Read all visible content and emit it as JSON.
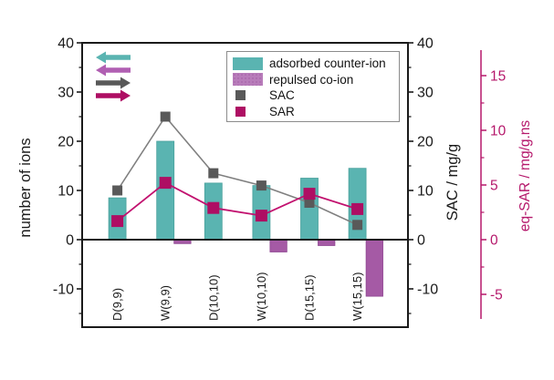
{
  "figure": {
    "kind": "ion-adsorption-combo-chart",
    "title": ""
  },
  "chart_data": {
    "type": "bar",
    "categories": [
      "D(9,9)",
      "W(9,9)",
      "D(10,10)",
      "W(10,10)",
      "D(15,15)",
      "W(15,15)"
    ],
    "series": [
      {
        "name": "adsorbed counter-ion",
        "type": "bar",
        "axis": "left",
        "color": "#5ab4b1",
        "edge_color": "#49a09c",
        "values": [
          8.5,
          20,
          11.5,
          11,
          12.5,
          14.5
        ]
      },
      {
        "name": "repulsed co-ion",
        "type": "bar",
        "axis": "left",
        "color": "#a55aa5",
        "edge_color": "#8f4691",
        "values": [
          0,
          -0.8,
          0,
          -2.5,
          -1.2,
          -11.5
        ]
      },
      {
        "name": "SAC",
        "type": "line",
        "axis": "right_sac",
        "marker_color": "#595959",
        "line_color": "#7f7f7f",
        "values": [
          10,
          25,
          13.5,
          11,
          7.5,
          3
        ]
      },
      {
        "name": "SAR",
        "type": "line",
        "axis": "right_sar",
        "marker_color": "#ae0e63",
        "line_color": "#c2116f",
        "values": [
          1.7,
          5.2,
          2.9,
          2.2,
          4.2,
          2.8
        ]
      }
    ],
    "axes": {
      "left": {
        "label": "number of ions",
        "major_ticks": [
          40,
          30,
          20,
          10,
          0,
          -10
        ],
        "minor_ticks": [
          35,
          25,
          15,
          5,
          -5,
          -15
        ],
        "range": [
          -17.8,
          40
        ]
      },
      "right_sac": {
        "label": "SAC / mg/g",
        "major_ticks": [
          40,
          30,
          20,
          10,
          0,
          -10
        ],
        "minor_ticks": [
          35,
          25,
          15,
          5,
          -5,
          -15
        ],
        "range": [
          -17.8,
          40
        ]
      },
      "right_sar": {
        "label": "eq-SAR /  mg/g.ns",
        "major_ticks": [
          15,
          10,
          5,
          0,
          -5
        ],
        "minor_ticks": [
          12.5,
          7.5,
          2.5,
          -2.5
        ],
        "range": [
          -7.3,
          17.3
        ]
      }
    },
    "legend_position": "top-right",
    "grid": false
  },
  "arrows": [
    {
      "name": "counter-ion-left-axis-arrow",
      "direction": "left",
      "color": "#5ab4b1"
    },
    {
      "name": "co-ion-left-axis-arrow",
      "direction": "left",
      "color": "#b05fb2"
    },
    {
      "name": "sac-right-axis-arrow",
      "direction": "right",
      "color": "#595959"
    },
    {
      "name": "sar-right-axis-arrow",
      "direction": "right",
      "color": "#ae0e63"
    }
  ],
  "colors": {
    "counter_ion": "#5ab4b1",
    "co_ion": "#a55aa5",
    "co_ion_swatch": "#b87cba",
    "co_ion_swatch_dot": "#8f4691",
    "sac_marker": "#595959",
    "sac_line": "#7f7f7f",
    "sar_marker": "#ae0e63",
    "sar_line": "#c2116f",
    "sar_axis": "#b5186b",
    "axis_black": "#1a1a1a"
  }
}
